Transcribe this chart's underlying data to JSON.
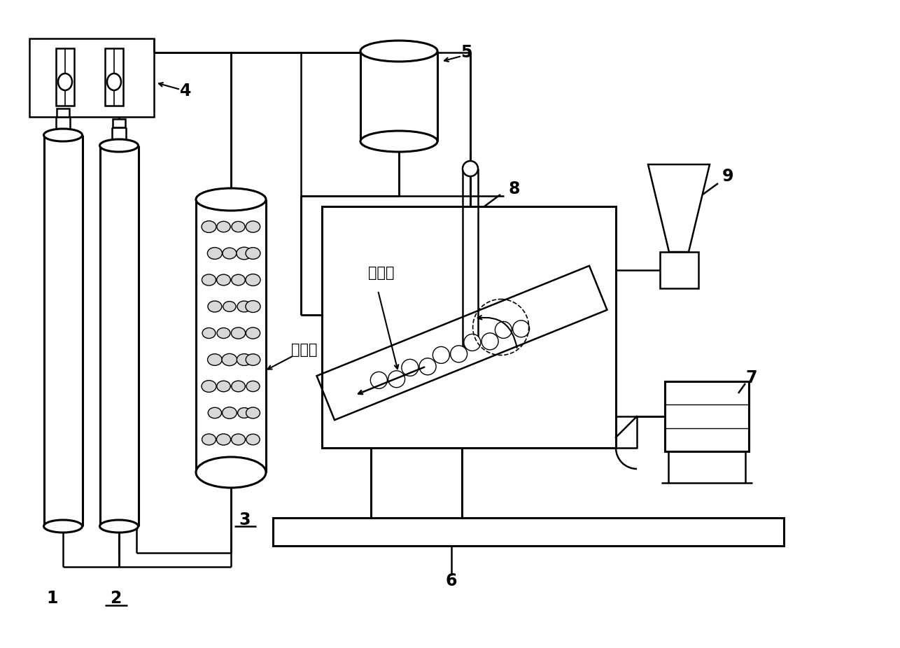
{
  "bg_color": "#ffffff",
  "line_color": "#000000",
  "lw": 1.8,
  "lw_thick": 2.2
}
